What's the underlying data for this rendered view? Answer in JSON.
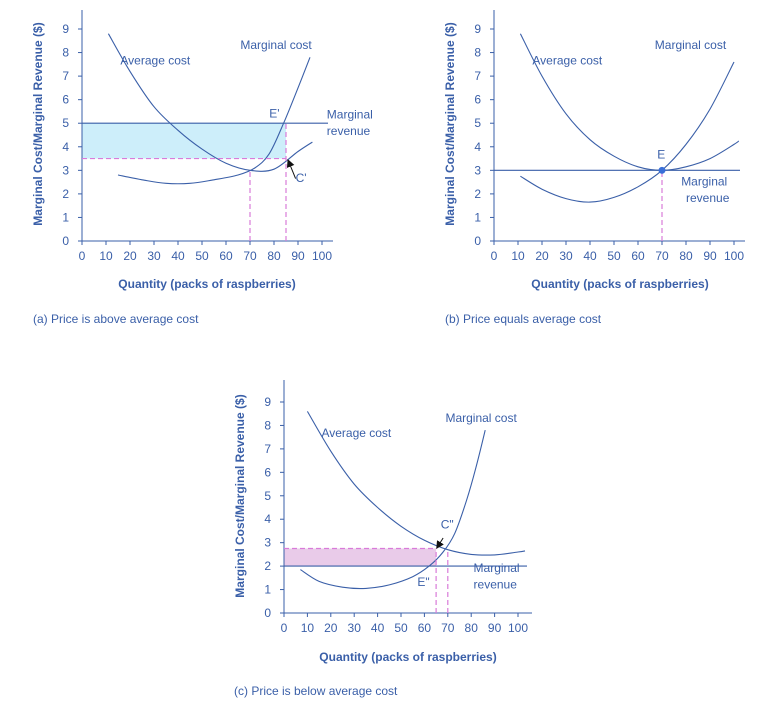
{
  "chart_data": [
    {
      "type": "line",
      "caption": "(a) Price is above average cost",
      "xlabel": "Quantity (packs of raspberries)",
      "ylabel": "Marginal Cost/Marginal Revenue ($)",
      "xlim": [
        0,
        100
      ],
      "ylim": [
        0,
        9
      ],
      "xticks": [
        0,
        10,
        20,
        30,
        40,
        50,
        60,
        70,
        80,
        90,
        100
      ],
      "yticks": [
        0,
        1,
        2,
        3,
        4,
        5,
        6,
        7,
        8,
        9
      ],
      "marginal_revenue": 5,
      "series": [
        {
          "name": "Average cost",
          "x": [
            11,
            20,
            30,
            40,
            50,
            60,
            70,
            80,
            90,
            96
          ],
          "y": [
            8.8,
            7.2,
            5.7,
            4.7,
            3.9,
            3.3,
            3.0,
            3.05,
            3.8,
            4.2
          ]
        },
        {
          "name": "Marginal cost",
          "x": [
            15,
            25,
            35,
            45,
            55,
            65,
            72,
            78,
            84,
            90,
            95
          ],
          "y": [
            2.8,
            2.6,
            2.45,
            2.45,
            2.6,
            2.8,
            3.1,
            3.7,
            5.0,
            6.5,
            7.8
          ]
        }
      ],
      "labels": [
        {
          "text": "Marginal cost",
          "x": 66,
          "y": 8.15
        },
        {
          "text": "Average cost",
          "x": 16,
          "y": 7.5
        },
        {
          "text": "Marginal",
          "x": 102,
          "y": 5.2
        },
        {
          "text": "revenue",
          "x": 102,
          "y": 4.5
        },
        {
          "text": "E'",
          "x": 78,
          "y": 5.25
        },
        {
          "text": "C'",
          "x": 89,
          "y": 2.5
        }
      ],
      "shaded": {
        "x0": 0,
        "x1": 85,
        "y0": 3.5,
        "y1": 5,
        "color": "#cdeefa"
      },
      "guides": [
        {
          "x1": 0,
          "y1": 3.5,
          "x2": 85,
          "y2": 3.5
        },
        {
          "x1": 70,
          "y1": 0,
          "x2": 70,
          "y2": 3.0
        },
        {
          "x1": 85,
          "y1": 0,
          "x2": 85,
          "y2": 5
        }
      ],
      "arrows": [
        {
          "x1": 89,
          "y1": 2.65,
          "x2": 86,
          "y2": 3.4
        }
      ],
      "points": []
    },
    {
      "type": "line",
      "caption": "(b) Price equals average cost",
      "xlabel": "Quantity (packs of raspberries)",
      "ylabel": "Marginal Cost/Marginal Revenue ($)",
      "xlim": [
        0,
        100
      ],
      "ylim": [
        0,
        9
      ],
      "xticks": [
        0,
        10,
        20,
        30,
        40,
        50,
        60,
        70,
        80,
        90,
        100
      ],
      "yticks": [
        0,
        1,
        2,
        3,
        4,
        5,
        6,
        7,
        8,
        9
      ],
      "marginal_revenue": 3,
      "series": [
        {
          "name": "Average cost",
          "x": [
            11,
            20,
            30,
            40,
            50,
            60,
            70,
            80,
            90,
            100,
            102
          ],
          "y": [
            8.8,
            7.0,
            5.4,
            4.3,
            3.6,
            3.15,
            3.0,
            3.15,
            3.5,
            4.1,
            4.25
          ]
        },
        {
          "name": "Marginal cost",
          "x": [
            11,
            20,
            30,
            40,
            50,
            60,
            70,
            80,
            90,
            100
          ],
          "y": [
            2.75,
            2.2,
            1.8,
            1.65,
            1.85,
            2.3,
            3.0,
            4.1,
            5.6,
            7.6
          ]
        }
      ],
      "labels": [
        {
          "text": "Marginal cost",
          "x": 67,
          "y": 8.15
        },
        {
          "text": "Average cost",
          "x": 16,
          "y": 7.5
        },
        {
          "text": "E",
          "x": 68,
          "y": 3.5
        },
        {
          "text": "Marginal",
          "x": 78,
          "y": 2.35
        },
        {
          "text": "revenue",
          "x": 80,
          "y": 1.65
        }
      ],
      "shaded": null,
      "guides": [
        {
          "x1": 70,
          "y1": 0,
          "x2": 70,
          "y2": 3.0
        }
      ],
      "arrows": [],
      "points": [
        {
          "x": 70,
          "y": 3.0
        }
      ]
    },
    {
      "type": "line",
      "caption": "(c) Price is below average cost",
      "xlabel": "Quantity (packs of raspberries)",
      "ylabel": "Marginal Cost/Marginal Revenue ($)",
      "xlim": [
        0,
        100
      ],
      "ylim": [
        0,
        9
      ],
      "xticks": [
        0,
        10,
        20,
        30,
        40,
        50,
        60,
        70,
        80,
        90,
        100
      ],
      "yticks": [
        0,
        1,
        2,
        3,
        4,
        5,
        6,
        7,
        8,
        9
      ],
      "marginal_revenue": 2,
      "series": [
        {
          "name": "Average cost",
          "x": [
            10,
            20,
            30,
            40,
            50,
            60,
            70,
            80,
            90,
            100,
            103
          ],
          "y": [
            8.6,
            6.9,
            5.5,
            4.5,
            3.7,
            3.1,
            2.7,
            2.5,
            2.48,
            2.6,
            2.65
          ]
        },
        {
          "name": "Marginal cost",
          "x": [
            7,
            15,
            25,
            35,
            45,
            55,
            62,
            68,
            73,
            78,
            82,
            86
          ],
          "y": [
            1.85,
            1.35,
            1.1,
            1.05,
            1.2,
            1.55,
            2.0,
            2.6,
            3.4,
            4.8,
            6.2,
            7.8
          ]
        }
      ],
      "labels": [
        {
          "text": "Marginal cost",
          "x": 69,
          "y": 8.15
        },
        {
          "text": "Average cost",
          "x": 16,
          "y": 7.5
        },
        {
          "text": "C\"",
          "x": 67,
          "y": 3.6
        },
        {
          "text": "E\"",
          "x": 57,
          "y": 1.15
        },
        {
          "text": "Marginal",
          "x": 81,
          "y": 1.75
        },
        {
          "text": "revenue",
          "x": 81,
          "y": 1.05
        }
      ],
      "shaded": {
        "x0": 0,
        "x1": 65,
        "y0": 2,
        "y1": 2.75,
        "color": "#e9cbe9"
      },
      "guides": [
        {
          "x1": 0,
          "y1": 2.75,
          "x2": 65,
          "y2": 2.75
        },
        {
          "x1": 65,
          "y1": 0,
          "x2": 65,
          "y2": 2.75
        },
        {
          "x1": 70,
          "y1": 0,
          "x2": 70,
          "y2": 2.6
        }
      ],
      "arrows": [
        {
          "x1": 68,
          "y1": 3.2,
          "x2": 65.5,
          "y2": 2.8
        }
      ],
      "points": []
    }
  ]
}
